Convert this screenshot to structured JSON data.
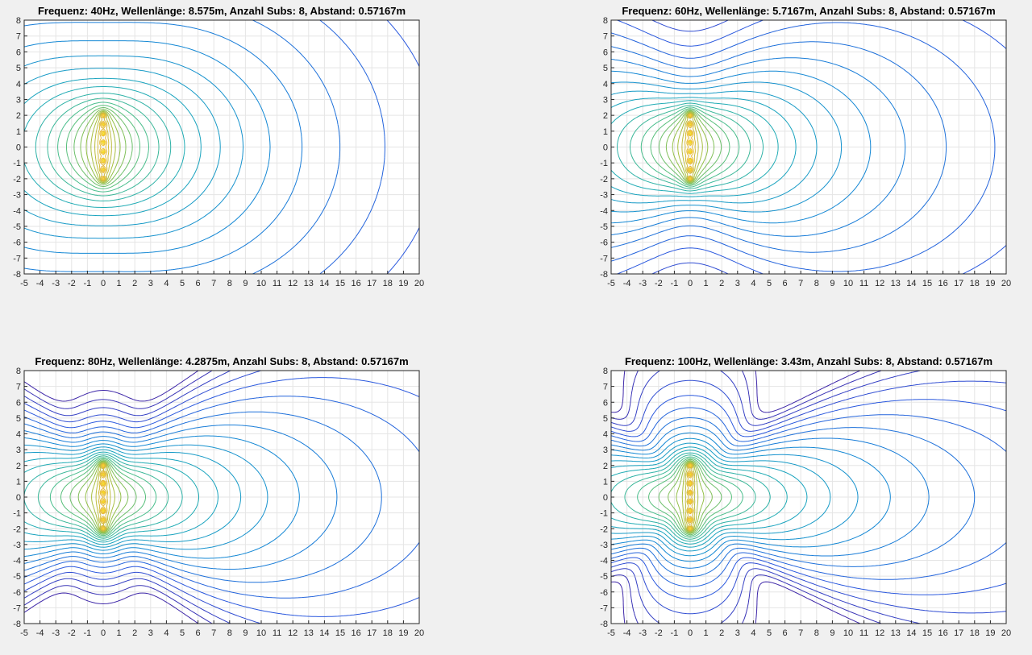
{
  "figure": {
    "background": "#f0f0f0"
  },
  "chart_data": [
    {
      "type": "contour",
      "title": "Frequenz: 40Hz,  Wellenlänge: 8.575m,  Anzahl Subs: 8,  Abstand: 0.57167m",
      "frequency_hz": 40,
      "xlim": [
        -5,
        20
      ],
      "ylim": [
        -8,
        8
      ],
      "xticks": [
        -5,
        -4,
        -3,
        -2,
        -1,
        0,
        1,
        2,
        3,
        4,
        5,
        6,
        7,
        8,
        9,
        10,
        11,
        12,
        13,
        14,
        15,
        16,
        17,
        18,
        19,
        20
      ],
      "yticks": [
        8,
        7,
        6,
        5,
        4,
        3,
        2,
        1,
        0,
        -1,
        -2,
        -3,
        -4,
        -5,
        -6,
        -7,
        -8
      ],
      "grid": true,
      "sources": {
        "count": 8,
        "spacing_m": 0.57167,
        "x": 0,
        "y_range": [
          -2.0,
          2.0
        ]
      }
    },
    {
      "type": "contour",
      "title": "Frequenz: 60Hz,  Wellenlänge: 5.7167m,  Anzahl Subs: 8,  Abstand: 0.57167m",
      "frequency_hz": 60,
      "xlim": [
        -5,
        20
      ],
      "ylim": [
        -8,
        8
      ],
      "xticks": [
        -5,
        -4,
        -3,
        -2,
        -1,
        0,
        1,
        2,
        3,
        4,
        5,
        6,
        7,
        8,
        9,
        10,
        11,
        12,
        13,
        14,
        15,
        16,
        17,
        18,
        19,
        20
      ],
      "yticks": [
        8,
        7,
        6,
        5,
        4,
        3,
        2,
        1,
        0,
        -1,
        -2,
        -3,
        -4,
        -5,
        -6,
        -7,
        -8
      ],
      "grid": true,
      "sources": {
        "count": 8,
        "spacing_m": 0.57167,
        "x": 0,
        "y_range": [
          -2.0,
          2.0
        ]
      }
    },
    {
      "type": "contour",
      "title": "Frequenz: 80Hz,  Wellenlänge: 4.2875m,  Anzahl Subs: 8,  Abstand: 0.57167m",
      "frequency_hz": 80,
      "xlim": [
        -5,
        20
      ],
      "ylim": [
        -8,
        8
      ],
      "xticks": [
        -5,
        -4,
        -3,
        -2,
        -1,
        0,
        1,
        2,
        3,
        4,
        5,
        6,
        7,
        8,
        9,
        10,
        11,
        12,
        13,
        14,
        15,
        16,
        17,
        18,
        19,
        20
      ],
      "yticks": [
        8,
        7,
        6,
        5,
        4,
        3,
        2,
        1,
        0,
        -1,
        -2,
        -3,
        -4,
        -5,
        -6,
        -7,
        -8
      ],
      "grid": true,
      "sources": {
        "count": 8,
        "spacing_m": 0.57167,
        "x": 0,
        "y_range": [
          -2.0,
          2.0
        ]
      }
    },
    {
      "type": "contour",
      "title": "Frequenz: 100Hz,  Wellenlänge: 3.43m,  Anzahl Subs: 8,  Abstand: 0.57167m",
      "frequency_hz": 100,
      "xlim": [
        -5,
        20
      ],
      "ylim": [
        -8,
        8
      ],
      "xticks": [
        -5,
        -4,
        -3,
        -2,
        -1,
        0,
        1,
        2,
        3,
        4,
        5,
        6,
        7,
        8,
        9,
        10,
        11,
        12,
        13,
        14,
        15,
        16,
        17,
        18,
        19,
        20
      ],
      "yticks": [
        8,
        7,
        6,
        5,
        4,
        3,
        2,
        1,
        0,
        -1,
        -2,
        -3,
        -4,
        -5,
        -6,
        -7,
        -8
      ],
      "grid": true,
      "sources": {
        "count": 8,
        "spacing_m": 0.57167,
        "x": 0,
        "y_range": [
          -2.0,
          2.0
        ]
      }
    }
  ],
  "colors": {
    "axes_bg": "#ffffff",
    "grid": "#e5e5e5",
    "axes_edge": "#262626"
  }
}
